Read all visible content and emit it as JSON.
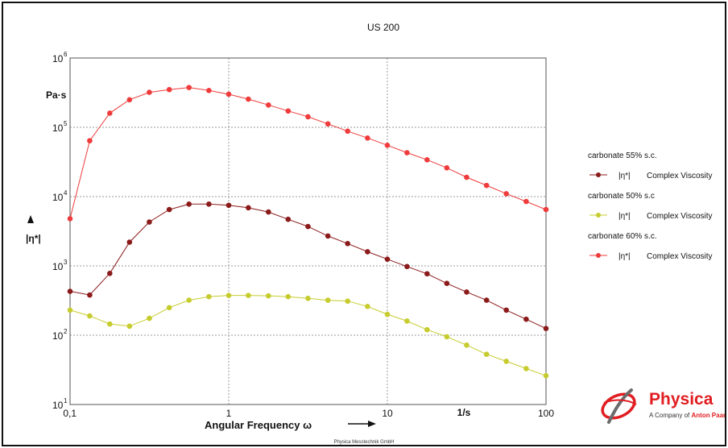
{
  "chart_data": {
    "type": "line",
    "title": "US 200",
    "xlabel": "Angular Frequency ω",
    "x_unit": "1/s",
    "ylabel": "|η*|",
    "y_unit": "Pa·s",
    "xscale": "log",
    "yscale": "log",
    "xlim": [
      0.1,
      100
    ],
    "ylim": [
      10,
      1000000
    ],
    "x_ticks": [
      "0,1",
      "1",
      "10",
      "100"
    ],
    "y_ticks": [
      {
        "base": "10",
        "exp": "1"
      },
      {
        "base": "10",
        "exp": "2"
      },
      {
        "base": "10",
        "exp": "3"
      },
      {
        "base": "10",
        "exp": "4"
      },
      {
        "base": "10",
        "exp": "5"
      },
      {
        "base": "10",
        "exp": "6"
      }
    ],
    "grid": true,
    "legend_position": "right",
    "x": [
      0.1,
      0.133,
      0.178,
      0.237,
      0.316,
      0.422,
      0.562,
      0.75,
      1,
      1.33,
      1.78,
      2.37,
      3.16,
      4.22,
      5.62,
      7.5,
      10,
      13.3,
      17.8,
      23.7,
      31.6,
      42.2,
      56.2,
      75,
      100
    ],
    "series": [
      {
        "group": "carbonate 55% s.c.",
        "name": "Complex Viscosity",
        "symbol": "|η*|",
        "color": "#8b1a1a",
        "values": [
          430,
          380,
          780,
          2200,
          4300,
          6500,
          7800,
          7800,
          7500,
          6900,
          6000,
          4700,
          3700,
          2700,
          2100,
          1600,
          1250,
          980,
          770,
          560,
          420,
          320,
          230,
          170,
          125
        ]
      },
      {
        "group": "carbonate  50% s.c",
        "name": "Complex Viscosity",
        "symbol": "|η*|",
        "color": "#c7cc2e",
        "values": [
          230,
          190,
          145,
          135,
          175,
          250,
          320,
          360,
          375,
          375,
          370,
          360,
          340,
          320,
          310,
          260,
          200,
          160,
          120,
          95,
          72,
          53,
          42,
          33,
          26
        ]
      },
      {
        "group": "carbonate 60% s.c.",
        "name": "Complex Viscosity",
        "symbol": "|η*|",
        "color": "#ef3b3b",
        "values": [
          4800,
          64000,
          160000,
          250000,
          320000,
          350000,
          375000,
          340000,
          300000,
          255000,
          210000,
          172000,
          142000,
          112000,
          88000,
          70000,
          55000,
          43000,
          34000,
          26000,
          19000,
          14500,
          11000,
          8500,
          6500
        ]
      }
    ]
  },
  "branding": {
    "name": "Physica",
    "tagline_prefix": "A Company of",
    "tagline_brand": "Anton Paar",
    "footer": "Physica Messtechnik GmbH"
  }
}
